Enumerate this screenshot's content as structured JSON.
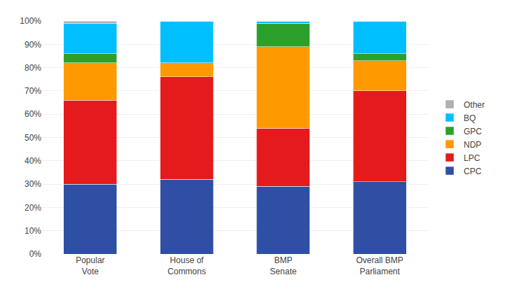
{
  "chart_data": {
    "type": "bar",
    "stacked": true,
    "categories": [
      "Popular\nVote",
      "House of\nCommons",
      "BMP\nSenate",
      "Overall BMP\nParliament"
    ],
    "series": [
      {
        "name": "CPC",
        "color": "#2E4FA3",
        "values": [
          30.0,
          32.0,
          29.0,
          31.0
        ]
      },
      {
        "name": "LPC",
        "color": "#E41A1C",
        "values": [
          36.0,
          44.0,
          25.0,
          39.0
        ]
      },
      {
        "name": "NDP",
        "color": "#FF9900",
        "values": [
          16.0,
          6.0,
          35.0,
          13.0
        ]
      },
      {
        "name": "GPC",
        "color": "#2CA02C",
        "values": [
          4.0,
          0.0,
          10.0,
          3.0
        ]
      },
      {
        "name": "BQ",
        "color": "#00BFFF",
        "values": [
          13.0,
          18.0,
          1.0,
          14.0
        ]
      },
      {
        "name": "Other",
        "color": "#B0B0B0",
        "values": [
          1.0,
          0.0,
          0.0,
          0.0
        ]
      }
    ],
    "ylim": [
      0,
      100
    ],
    "yticks": [
      {
        "value": 0,
        "label": "0%"
      },
      {
        "value": 10,
        "label": "10%"
      },
      {
        "value": 20,
        "label": "20%"
      },
      {
        "value": 30,
        "label": "30%"
      },
      {
        "value": 40,
        "label": "40%"
      },
      {
        "value": 50,
        "label": "50%"
      },
      {
        "value": 60,
        "label": "60%"
      },
      {
        "value": 70,
        "label": "70%"
      },
      {
        "value": 80,
        "label": "80%"
      },
      {
        "value": 90,
        "label": "90%"
      },
      {
        "value": 100,
        "label": "100%"
      }
    ],
    "grid": true,
    "legend": "right"
  }
}
